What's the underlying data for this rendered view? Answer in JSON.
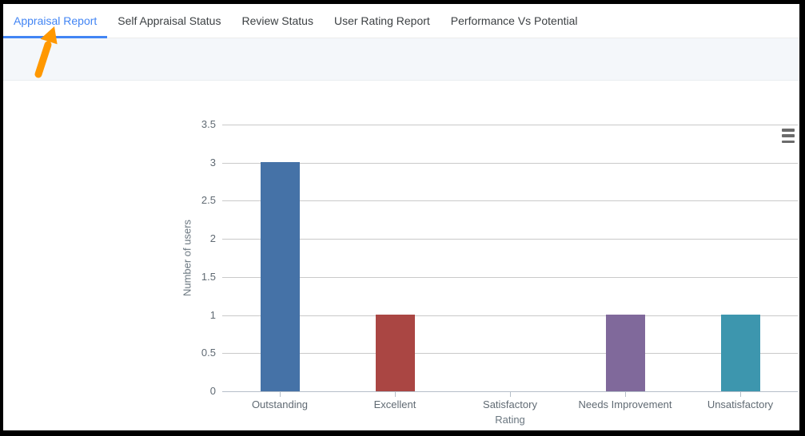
{
  "tab_bar": {
    "tabs": [
      {
        "label": "Appraisal Report",
        "active": true
      },
      {
        "label": "Self Appraisal Status",
        "active": false
      },
      {
        "label": "Review Status",
        "active": false
      },
      {
        "label": "User Rating Report",
        "active": false
      },
      {
        "label": "Performance Vs Potential",
        "active": false
      }
    ],
    "active_color": "#4285f4",
    "text_color": "#3c4043"
  },
  "annotation_arrow": {
    "shape": "arrow-pointing-up-right",
    "color": "#ff9800",
    "target": "Appraisal Report"
  },
  "chart": {
    "menu_icon": "hamburger-menu-icon",
    "menu_icon_color": "#6b6b6b",
    "gridline_color": "#c9c9c9",
    "label_color": "#606a73"
  },
  "chart_data": {
    "type": "bar",
    "title": "",
    "categories": [
      "Outstanding",
      "Excellent",
      "Satisfactory",
      "Needs Improvement",
      "Unsatisfactory"
    ],
    "values": [
      3,
      1,
      0,
      1,
      1
    ],
    "bar_colors": [
      "#4572a7",
      "#aa4643",
      null,
      "#80699b",
      "#3d96ae"
    ],
    "xlabel": "Rating",
    "ylabel": "Number of users",
    "ylim": [
      0,
      3.5
    ],
    "yticks": [
      0,
      0.5,
      1,
      1.5,
      2,
      2.5,
      3,
      3.5
    ],
    "grid": "horizontal-only",
    "legend": "none"
  }
}
